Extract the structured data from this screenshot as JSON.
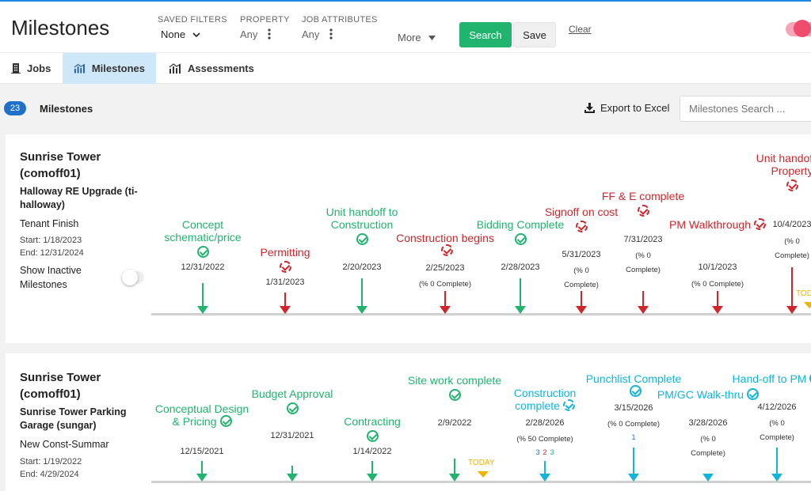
{
  "header": {
    "title": "Milestones",
    "filters": [
      {
        "label": "SAVED FILTERS",
        "value": "None"
      },
      {
        "label": "PROPERTY",
        "value": "Any"
      },
      {
        "label": "JOB ATTRIBUTES",
        "value": "Any"
      }
    ],
    "more_label": "More",
    "search_label": "Search",
    "save_label": "Save",
    "clear_label": "Clear"
  },
  "tabs": [
    {
      "label": "Jobs",
      "icon": "building-icon"
    },
    {
      "label": "Milestones",
      "icon": "chart-icon",
      "active": true
    },
    {
      "label": "Assessments",
      "icon": "chart-icon"
    }
  ],
  "toolbar": {
    "count": "23",
    "label": "Milestones",
    "export_label": "Export to Excel",
    "search_placeholder": "Milestones Search ..."
  },
  "colors": {
    "accent": "#21b46e",
    "late": "#d0262b",
    "future": "#12b4dc",
    "today": "#f0b400",
    "active_tab": "#cfe8f9",
    "badge": "#1e70c9",
    "toggle": "#f04c6e"
  },
  "jobs": [
    {
      "name": "Sunrise Tower (comoff01)",
      "project": "Halloway RE Upgrade (ti-halloway)",
      "type": "Tenant Finish",
      "start": "Start: 1/18/2023",
      "end": "End: 12/31/2024",
      "show_inactive": "Show Inactive Milestones",
      "milestones": [
        {
          "name": "Concept schematic/price",
          "date": "12/31/2022",
          "pct": "",
          "color": "green"
        },
        {
          "name": "Permitting",
          "date": "1/31/2023",
          "pct": "",
          "color": "red"
        },
        {
          "name": "Unit handoff to Construction",
          "date": "2/20/2023",
          "pct": "",
          "color": "green"
        },
        {
          "name": "Construction begins",
          "date": "2/25/2023",
          "pct": "(% 0 Complete)",
          "color": "red"
        },
        {
          "name": "Bidding Complete",
          "date": "2/28/2023",
          "pct": "",
          "color": "green"
        },
        {
          "name": "Signoff on cost",
          "date": "5/31/2023",
          "pct": "(% 0 Complete)",
          "color": "red"
        },
        {
          "name": "FF & E complete",
          "date": "7/31/2023",
          "pct": "(% 0 Complete)",
          "color": "red"
        },
        {
          "name": "PM Walkthrough",
          "date": "10/1/2023",
          "pct": "(% 0 Complete)",
          "color": "red"
        },
        {
          "name": "Unit handoff to Property",
          "date": "10/4/2023",
          "pct": "(% 0 Complete)",
          "color": "red"
        }
      ],
      "today": "TODAY"
    },
    {
      "name": "Sunrise Tower (comoff01)",
      "project": "Sunrise Tower Parking Garage (sungar)",
      "type": "New Const-Summar",
      "start": "Start: 1/19/2022",
      "end": "End: 4/29/2024",
      "milestones": [
        {
          "name": "Conceptual Design & Pricing",
          "date": "12/15/2021",
          "pct": "",
          "color": "green"
        },
        {
          "name": "Budget Approval",
          "date": "12/31/2021",
          "pct": "",
          "color": "green"
        },
        {
          "name": "Contracting",
          "date": "1/14/2022",
          "pct": "",
          "color": "green"
        },
        {
          "name": "Site work complete",
          "date": "2/9/2022",
          "pct": "",
          "color": "green"
        },
        {
          "name": "Construction complete",
          "date": "2/28/2026",
          "pct": "(% 50 Complete)",
          "color": "blue",
          "sub": [
            "3",
            "2",
            "3"
          ]
        },
        {
          "name": "Punchlist Complete",
          "date": "3/15/2026",
          "pct": "(% 0 Complete)",
          "color": "blue",
          "sub": [
            "1"
          ]
        },
        {
          "name": "PM/GC Walk-thru",
          "date": "3/28/2026",
          "pct": "(% 0 Complete)",
          "color": "blue"
        },
        {
          "name": "Hand-off to PM",
          "date": "4/12/2026",
          "pct": "(% 0 Complete)",
          "color": "blue"
        }
      ],
      "today": "TODAY"
    }
  ]
}
